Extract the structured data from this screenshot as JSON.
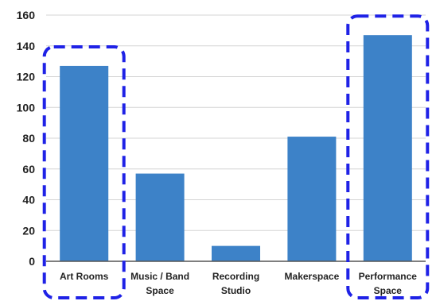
{
  "chart_data": {
    "type": "bar",
    "categories": [
      [
        "Art Rooms"
      ],
      [
        "Music / Band",
        "Space"
      ],
      [
        "Recording",
        "Studio"
      ],
      [
        "Makerspace"
      ],
      [
        "Performance",
        "Space"
      ]
    ],
    "values": [
      127,
      57,
      10,
      81,
      147
    ],
    "ylim": [
      0,
      160
    ],
    "yticks": [
      0,
      20,
      40,
      60,
      80,
      100,
      120,
      140,
      160
    ],
    "grid": true,
    "bar_color": "#3d82c8",
    "highlight_color": "#1f22e6",
    "highlighted_categories": [
      0,
      4
    ]
  }
}
